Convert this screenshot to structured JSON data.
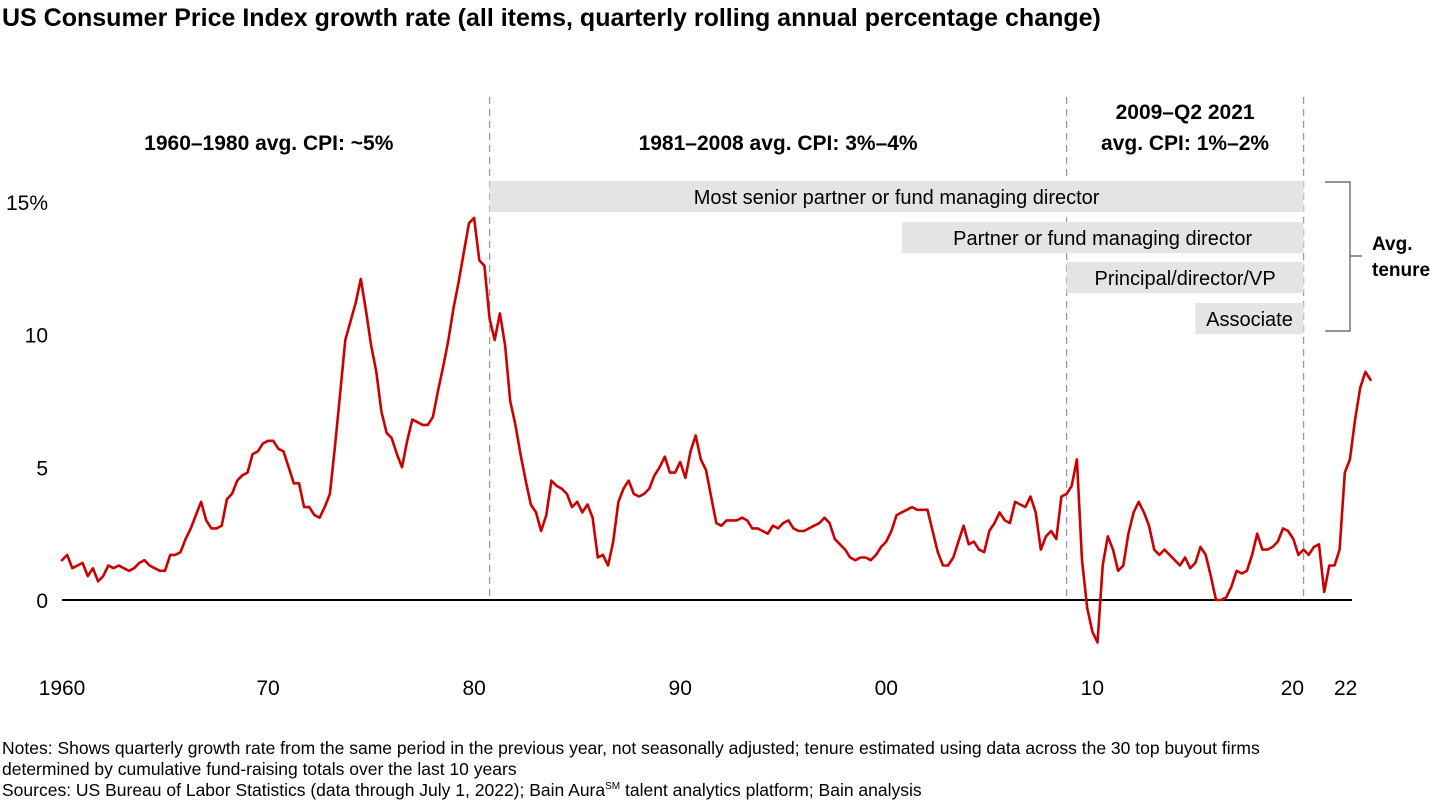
{
  "title": "US Consumer Price Index growth rate (all items, quarterly rolling annual percentage change)",
  "periods": [
    {
      "lines": [
        "1960–1980 avg. CPI: ~5%"
      ]
    },
    {
      "lines": [
        "1981–2008 avg. CPI: 3%–4%"
      ]
    },
    {
      "lines": [
        "2009–Q2 2021",
        "avg. CPI: 1%–2%"
      ]
    }
  ],
  "tenure_label": [
    "Avg.",
    "tenure"
  ],
  "notes": {
    "line1": "Notes: Shows quarterly growth rate from the same period in the previous year, not seasonally adjusted; tenure estimated using data across the 30 top buyout firms",
    "line2": "determined by cumulative fund-raising totals over the last 10 years",
    "sources_pre": "Sources: US Bureau of Labor Statistics (data through July 1, 2022); Bain Aura",
    "sources_sup": "SM",
    "sources_post": " talent analytics platform; Bain analysis"
  },
  "chart_data": {
    "type": "line",
    "title": "US Consumer Price Index growth rate (all items, quarterly rolling annual percentage change)",
    "xlabel": "",
    "ylabel": "",
    "xlim": [
      1960,
      2022.6
    ],
    "ylim": [
      -2,
      15
    ],
    "x_tick_values": [
      1960,
      1970,
      1980,
      1990,
      2000,
      2010,
      2020,
      2022
    ],
    "x_tick_labels": [
      "1960",
      "70",
      "80",
      "90",
      "00",
      "10",
      "20",
      "22"
    ],
    "y_tick_values": [
      0,
      5,
      10,
      15
    ],
    "y_tick_labels": [
      "0",
      "5",
      "10",
      "15%"
    ],
    "period_dividers": [
      1980.75,
      2008.75,
      2020.25
    ],
    "tenure_bars": [
      {
        "label": "Most senior partner or fund managing director",
        "start": 1980.75,
        "end": 2020.25
      },
      {
        "label": "Partner or fund managing director",
        "start": 2000.75,
        "end": 2020.25
      },
      {
        "label": "Principal/director/VP",
        "start": 2008.75,
        "end": 2020.25
      },
      {
        "label": "Associate",
        "start": 2015.0,
        "end": 2020.25
      }
    ],
    "grid": false,
    "line_color": "#CC0000",
    "bar_color": "#E4E4E4",
    "series": [
      {
        "x_start": 1960.0,
        "x_step": 0.25,
        "values": [
          1.5,
          1.7,
          1.2,
          1.3,
          1.4,
          0.9,
          1.2,
          0.7,
          0.9,
          1.3,
          1.2,
          1.3,
          1.2,
          1.1,
          1.2,
          1.4,
          1.5,
          1.3,
          1.2,
          1.1,
          1.1,
          1.7,
          1.7,
          1.8,
          2.3,
          2.7,
          3.2,
          3.7,
          3.0,
          2.7,
          2.7,
          2.8,
          3.8,
          4.0,
          4.5,
          4.7,
          4.8,
          5.5,
          5.6,
          5.9,
          6.0,
          6.0,
          5.7,
          5.6,
          5.0,
          4.4,
          4.4,
          3.5,
          3.5,
          3.2,
          3.1,
          3.5,
          4.0,
          5.8,
          7.8,
          9.8,
          10.5,
          11.2,
          12.1,
          10.9,
          9.6,
          8.6,
          7.1,
          6.3,
          6.1,
          5.5,
          5.0,
          6.0,
          6.8,
          6.7,
          6.6,
          6.6,
          6.9,
          7.9,
          8.8,
          9.8,
          11.0,
          12.0,
          13.1,
          14.2,
          14.4,
          12.8,
          12.6,
          10.6,
          9.8,
          10.8,
          9.6,
          7.5,
          6.6,
          5.5,
          4.5,
          3.6,
          3.3,
          2.6,
          3.2,
          4.5,
          4.3,
          4.2,
          4.0,
          3.5,
          3.7,
          3.3,
          3.6,
          3.1,
          1.6,
          1.7,
          1.3,
          2.2,
          3.7,
          4.2,
          4.5,
          4.0,
          3.9,
          4.0,
          4.2,
          4.7,
          5.0,
          5.4,
          4.8,
          4.8,
          5.2,
          4.6,
          5.6,
          6.2,
          5.3,
          4.9,
          3.9,
          2.9,
          2.8,
          3.0,
          3.0,
          3.0,
          3.1,
          3.0,
          2.7,
          2.7,
          2.6,
          2.5,
          2.8,
          2.7,
          2.9,
          3.0,
          2.7,
          2.6,
          2.6,
          2.7,
          2.8,
          2.9,
          3.1,
          2.9,
          2.3,
          2.1,
          1.9,
          1.6,
          1.5,
          1.6,
          1.6,
          1.5,
          1.7,
          2.0,
          2.2,
          2.6,
          3.2,
          3.3,
          3.4,
          3.5,
          3.4,
          3.4,
          3.4,
          2.6,
          1.8,
          1.3,
          1.3,
          1.6,
          2.2,
          2.8,
          2.1,
          2.2,
          1.9,
          1.8,
          2.6,
          2.9,
          3.3,
          3.0,
          2.9,
          3.7,
          3.6,
          3.5,
          3.9,
          3.3,
          1.9,
          2.4,
          2.6,
          2.3,
          3.9,
          4.0,
          4.3,
          5.3,
          1.5,
          -0.3,
          -1.2,
          -1.6,
          1.3,
          2.4,
          1.9,
          1.1,
          1.3,
          2.5,
          3.3,
          3.7,
          3.3,
          2.8,
          1.9,
          1.7,
          1.9,
          1.7,
          1.5,
          1.3,
          1.6,
          1.2,
          1.4,
          2.0,
          1.7,
          0.9,
          0.0,
          0.0,
          0.1,
          0.5,
          1.1,
          1.0,
          1.1,
          1.7,
          2.5,
          1.9,
          1.9,
          2.0,
          2.2,
          2.7,
          2.6,
          2.3,
          1.7,
          1.9,
          1.7,
          2.0,
          2.1,
          0.3,
          1.3,
          1.3,
          1.9,
          4.8,
          5.3,
          6.8,
          8.0,
          8.6,
          8.3
        ]
      }
    ]
  }
}
